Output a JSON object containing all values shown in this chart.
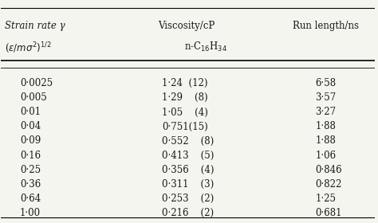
{
  "col1_header_line1": "Strain rate γ",
  "col1_header_line2": "(ε/mσ²)¹ᐟ²",
  "col2_header_line1": "Viscosity/cP",
  "col2_header_line2": "n-C₁₆H₃₄",
  "col3_header": "Run length/ns",
  "col1_data": [
    "0·0025",
    "0·005",
    "0·01",
    "0·04",
    "0·09",
    "0·16",
    "0·25",
    "0·36",
    "0·64",
    "1·00"
  ],
  "col2_data": [
    "1·24  (12)",
    "1·29    (8)",
    "1·05    (4)",
    "0·751(15)",
    "0·552    (8)",
    "0·413    (5)",
    "0·356    (4)",
    "0·311    (3)",
    "0·253    (2)",
    "0·216    (2)"
  ],
  "col3_data": [
    "6·58",
    "3·57",
    "3·27",
    "1·88",
    "1·88",
    "1·06",
    "0·846",
    "0·822",
    "1·25",
    "0·681"
  ],
  "background_color": "#f5f5f0",
  "text_color": "#1a1a1a",
  "font_size": 8.5,
  "header_font_size": 8.5
}
